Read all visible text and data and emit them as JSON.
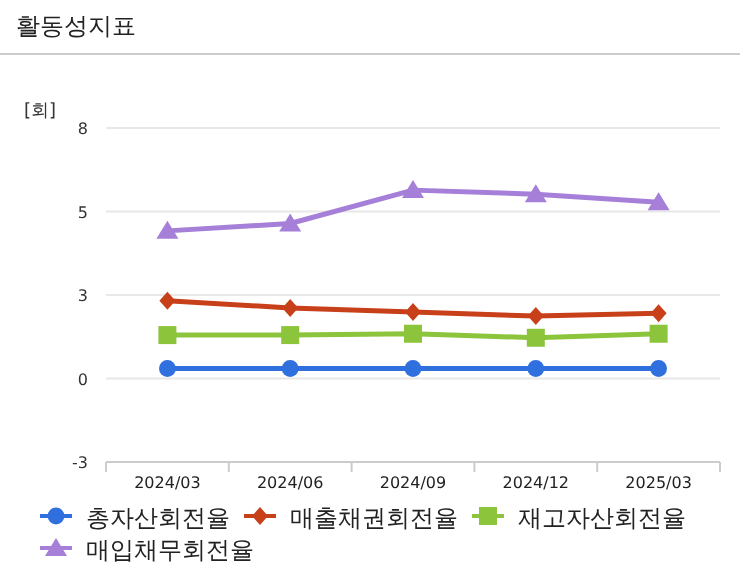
{
  "chart_data": {
    "type": "line",
    "title": "활동성지표",
    "ylabel": "[회]",
    "categories": [
      "2024/03",
      "2024/06",
      "2024/09",
      "2024/12",
      "2025/03"
    ],
    "series": [
      {
        "name": "총자산회전율",
        "color": "#2f6fde",
        "marker": "circle",
        "values": [
          0.3,
          0.3,
          0.3,
          0.3,
          0.3
        ]
      },
      {
        "name": "매출채권회전율",
        "color": "#c8401a",
        "marker": "diamond",
        "values": [
          2.33,
          2.11,
          1.99,
          1.87,
          1.95
        ]
      },
      {
        "name": "재고자산회전율",
        "color": "#8cc43c",
        "marker": "square",
        "values": [
          1.3,
          1.3,
          1.34,
          1.22,
          1.34
        ]
      },
      {
        "name": "매입채무회전율",
        "color": "#a57fd8",
        "marker": "triangle",
        "values": [
          4.42,
          4.64,
          5.64,
          5.52,
          5.28
        ]
      }
    ],
    "ylim": [
      -2.5,
      7.5
    ],
    "yticks": [
      {
        "value": -2.5,
        "label": "-3"
      },
      {
        "value": 0,
        "label": "0"
      },
      {
        "value": 2.5,
        "label": "3"
      },
      {
        "value": 5,
        "label": "5"
      },
      {
        "value": 7.5,
        "label": "8"
      }
    ],
    "grid": "y",
    "legend": "bottom"
  }
}
